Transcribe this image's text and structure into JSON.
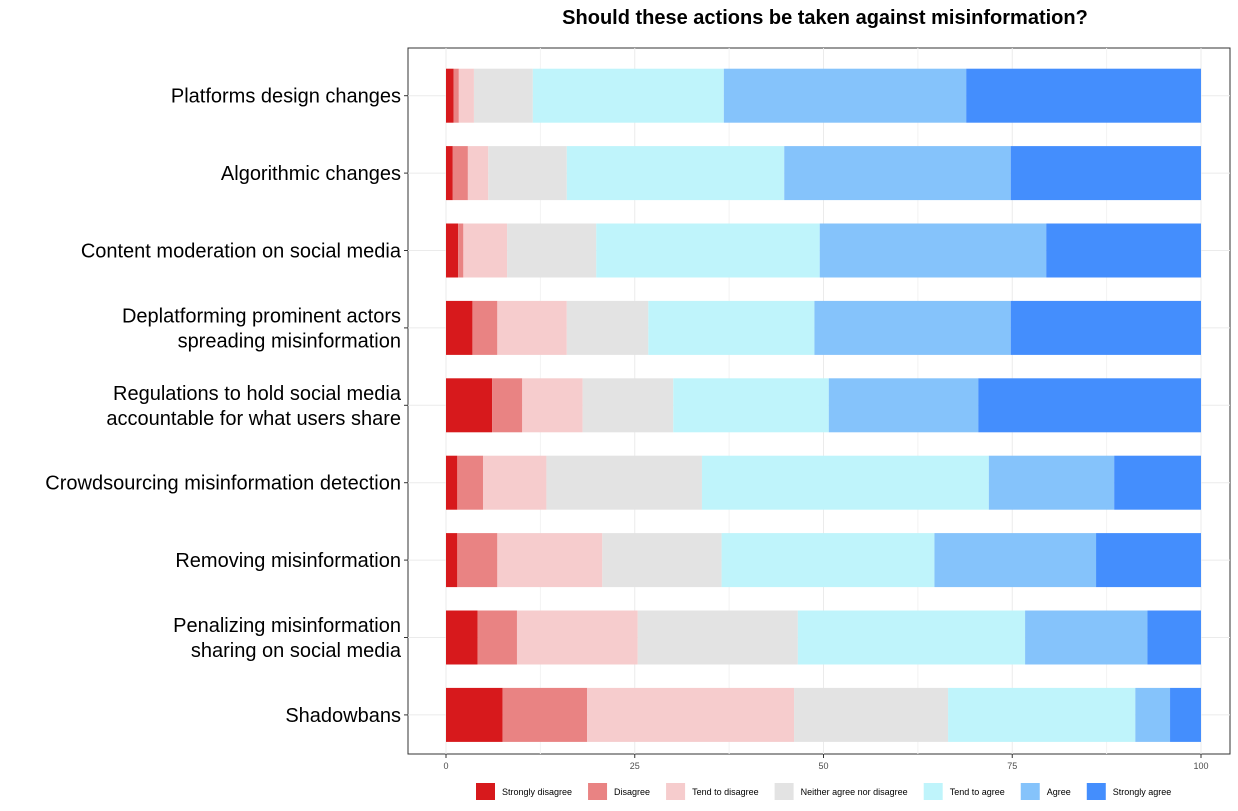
{
  "chart_data": {
    "type": "bar",
    "orientation": "horizontal",
    "stacked": true,
    "title": "Should these actions be taken against misinformation?",
    "xlabel": "",
    "ylabel": "",
    "xlim": [
      0,
      100
    ],
    "x_ticks": [
      "0",
      "25",
      "50",
      "75",
      "100"
    ],
    "grid": true,
    "legend_position": "bottom",
    "categories": [
      [
        "Platforms design changes"
      ],
      [
        "Algorithmic changes"
      ],
      [
        "Content moderation on social media"
      ],
      [
        "Deplatforming prominent actors",
        "spreading misinformation"
      ],
      [
        "Regulations to hold social media",
        "accountable for what users share"
      ],
      [
        "Crowdsourcing misinformation detection"
      ],
      [
        "Removing misinformation"
      ],
      [
        "Penalizing misinformation",
        "sharing on social media"
      ],
      [
        "Shadowbans"
      ]
    ],
    "series": [
      {
        "name": "Strongly disagree",
        "color": "#d7191c",
        "values": [
          1.0,
          0.9,
          1.6,
          3.5,
          6.1,
          1.5,
          1.5,
          4.2,
          7.5
        ]
      },
      {
        "name": "Disagree",
        "color": "#e98383",
        "values": [
          0.7,
          2.0,
          0.7,
          3.3,
          4.0,
          3.4,
          5.3,
          5.2,
          11.2
        ]
      },
      {
        "name": "Tend to disagree",
        "color": "#f6cccd",
        "values": [
          2.0,
          2.7,
          5.8,
          9.2,
          8.0,
          8.4,
          13.9,
          16.0,
          27.4
        ]
      },
      {
        "name": "Neither agree nor disagree",
        "color": "#e3e3e3",
        "values": [
          7.8,
          10.4,
          11.8,
          10.8,
          12.0,
          20.6,
          15.8,
          21.2,
          20.4
        ]
      },
      {
        "name": "Tend to agree",
        "color": "#bff4fb",
        "values": [
          25.3,
          28.8,
          29.6,
          22.0,
          20.6,
          38.0,
          28.2,
          30.1,
          24.8
        ]
      },
      {
        "name": "Agree",
        "color": "#85c3fb",
        "values": [
          32.1,
          30.0,
          30.0,
          26.0,
          19.8,
          16.6,
          21.4,
          16.2,
          4.6
        ]
      },
      {
        "name": "Strongly agree",
        "color": "#448efd",
        "values": [
          31.1,
          25.2,
          20.5,
          25.2,
          29.5,
          11.5,
          13.9,
          7.1,
          4.1
        ]
      }
    ]
  }
}
